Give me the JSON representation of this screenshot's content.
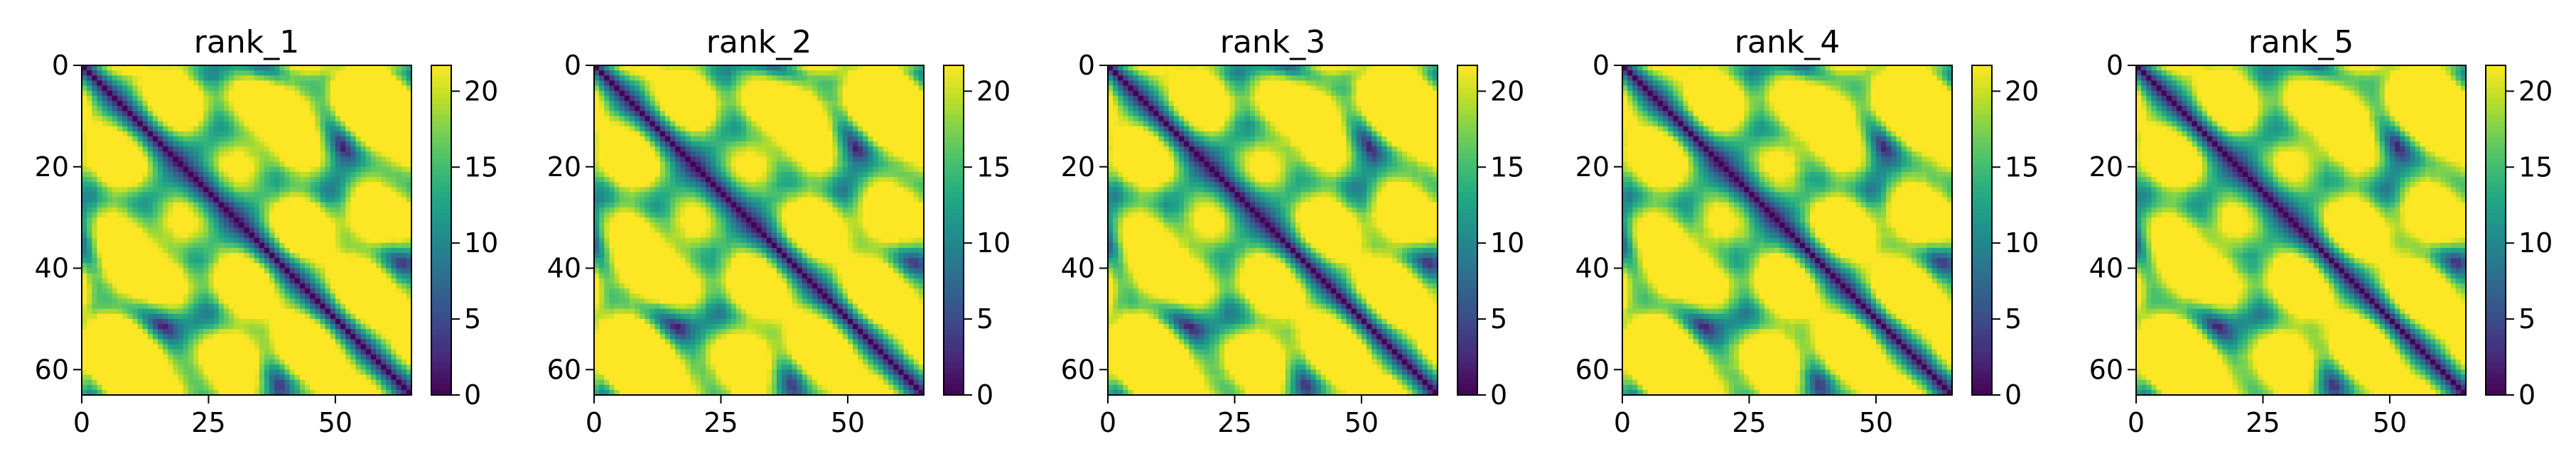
{
  "chart_data": [
    {
      "type": "heatmap",
      "title": "rank_1",
      "matrix_size": 65,
      "x_ticks": [
        0,
        25,
        50
      ],
      "y_ticks": [
        0,
        20,
        40,
        60
      ],
      "xlim": [
        0,
        65
      ],
      "ylim": [
        65,
        0
      ],
      "colormap": "viridis",
      "colorbar": {
        "range": [
          0,
          21.7
        ],
        "ticks": [
          0,
          5,
          10,
          15,
          20
        ]
      }
    },
    {
      "type": "heatmap",
      "title": "rank_2",
      "matrix_size": 65,
      "x_ticks": [
        0,
        25,
        50
      ],
      "y_ticks": [
        0,
        20,
        40,
        60
      ],
      "xlim": [
        0,
        65
      ],
      "ylim": [
        65,
        0
      ],
      "colormap": "viridis",
      "colorbar": {
        "range": [
          0,
          21.7
        ],
        "ticks": [
          0,
          5,
          10,
          15,
          20
        ]
      }
    },
    {
      "type": "heatmap",
      "title": "rank_3",
      "matrix_size": 65,
      "x_ticks": [
        0,
        25,
        50
      ],
      "y_ticks": [
        0,
        20,
        40,
        60
      ],
      "xlim": [
        0,
        65
      ],
      "ylim": [
        65,
        0
      ],
      "colormap": "viridis",
      "colorbar": {
        "range": [
          0,
          21.7
        ],
        "ticks": [
          0,
          5,
          10,
          15,
          20
        ]
      }
    },
    {
      "type": "heatmap",
      "title": "rank_4",
      "matrix_size": 65,
      "x_ticks": [
        0,
        25,
        50
      ],
      "y_ticks": [
        0,
        20,
        40,
        60
      ],
      "xlim": [
        0,
        65
      ],
      "ylim": [
        65,
        0
      ],
      "colormap": "viridis",
      "colorbar": {
        "range": [
          0,
          21.7
        ],
        "ticks": [
          0,
          5,
          10,
          15,
          20
        ]
      }
    },
    {
      "type": "heatmap",
      "title": "rank_5",
      "matrix_size": 65,
      "x_ticks": [
        0,
        25,
        50
      ],
      "y_ticks": [
        0,
        20,
        40,
        60
      ],
      "xlim": [
        0,
        65
      ],
      "ylim": [
        65,
        0
      ],
      "colormap": "viridis",
      "colorbar": {
        "range": [
          0,
          21.7
        ],
        "ticks": [
          0,
          5,
          10,
          15,
          20
        ]
      }
    }
  ]
}
